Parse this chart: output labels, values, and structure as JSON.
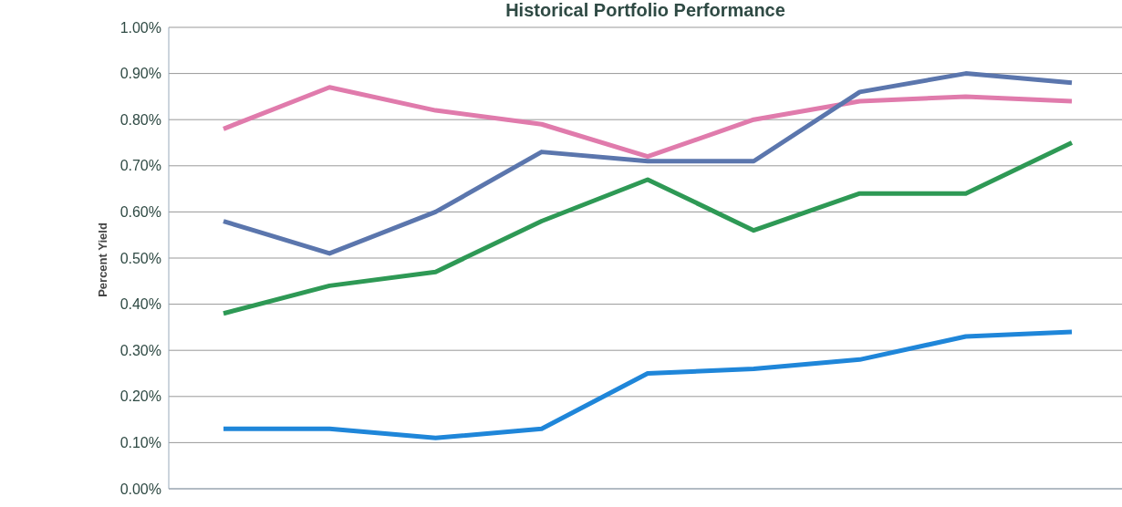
{
  "chart_data": {
    "type": "line",
    "title": "Historical Portfolio Performance",
    "ylabel": "Percent Yield",
    "categories": [
      null,
      null,
      null,
      null,
      null,
      null,
      null,
      null,
      null
    ],
    "series": [
      {
        "color": "#e07bac",
        "values": [
          0.78,
          0.87,
          0.82,
          0.79,
          0.72,
          0.8,
          0.84,
          0.85,
          0.84
        ]
      },
      {
        "color": "#5b76ad",
        "values": [
          0.58,
          0.51,
          0.6,
          0.73,
          0.71,
          0.71,
          0.86,
          0.9,
          0.88
        ]
      },
      {
        "color": "#2e9955",
        "values": [
          0.38,
          0.44,
          0.47,
          0.58,
          0.67,
          0.56,
          0.64,
          0.64,
          0.75
        ]
      },
      {
        "color": "#1f86d9",
        "values": [
          0.13,
          0.13,
          0.11,
          0.13,
          0.25,
          0.26,
          0.28,
          0.33,
          0.34
        ]
      }
    ],
    "ylim": [
      0,
      1
    ],
    "yticks": [
      {
        "value": 0,
        "label": "0.00%"
      },
      {
        "value": 0.1,
        "label": "0.10%"
      },
      {
        "value": 0.2,
        "label": "0.20%"
      },
      {
        "value": 0.3,
        "label": "0.30%"
      },
      {
        "value": 0.4,
        "label": "0.40%"
      },
      {
        "value": 0.5,
        "label": "0.50%"
      },
      {
        "value": 0.6,
        "label": "0.60%"
      },
      {
        "value": 0.7,
        "label": "0.70%"
      },
      {
        "value": 0.8,
        "label": "0.80%"
      },
      {
        "value": 0.9,
        "label": "0.90%"
      },
      {
        "value": 1,
        "label": "1.00%"
      }
    ],
    "grid": "y",
    "tick_labels": "y",
    "marker": "none",
    "line_style": "solid",
    "legend": false
  }
}
